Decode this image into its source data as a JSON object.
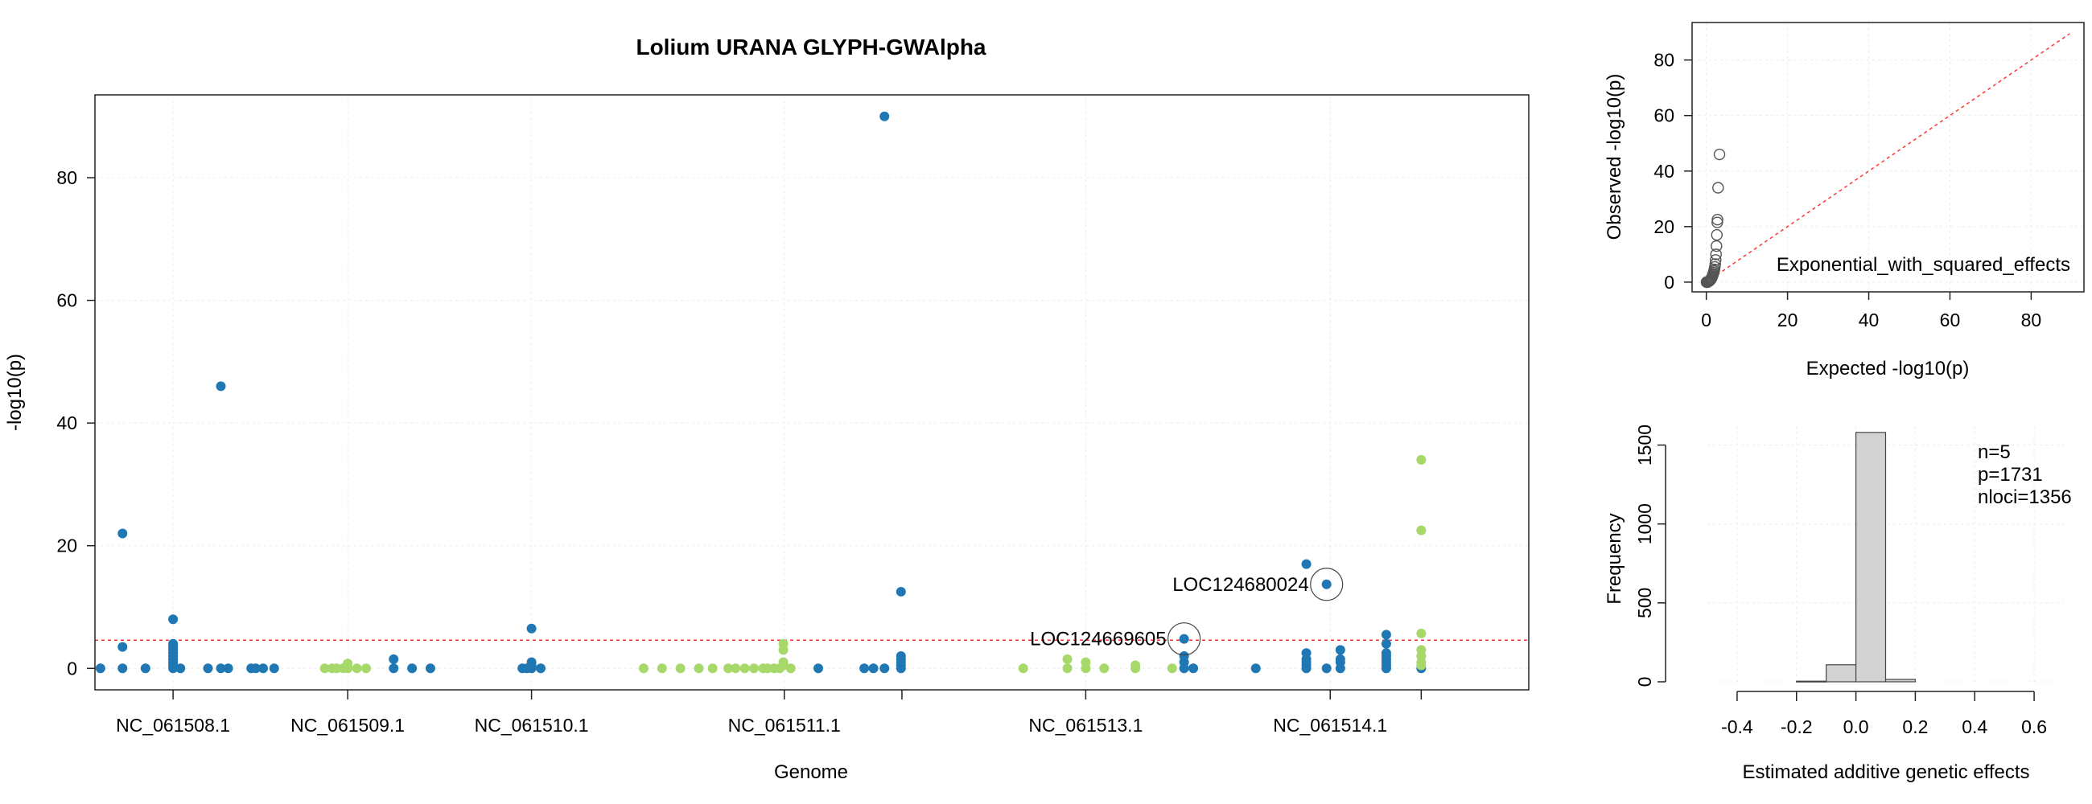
{
  "chart_data": [
    {
      "type": "scatter",
      "title": "Lolium URANA GLYPH-GWAlpha",
      "xlabel": "Genome",
      "ylabel": "-log10(p)",
      "ylim": [
        -3.5,
        93.5
      ],
      "xlim": [
        -5,
        1555
      ],
      "y_ticks": [
        0,
        20,
        40,
        60,
        80
      ],
      "grid": true,
      "threshold": 4.6,
      "colors": {
        "blue": "#1f78b4",
        "green": "#a6d96a",
        "threshold": "#ff3333"
      },
      "chromosome_labels": [
        {
          "label": "NC_061508.1",
          "x": 80
        },
        {
          "label": "NC_061509.1",
          "x": 270
        },
        {
          "label": "NC_061510.1",
          "x": 470
        },
        {
          "label": "NC_061511.1",
          "x": 745
        },
        {
          "label": "NC_061513.1",
          "x": 1073
        },
        {
          "label": "NC_061514.1",
          "x": 1339
        }
      ],
      "extra_ticks": [
        873,
        1438
      ],
      "series": [
        {
          "color": "blue",
          "points": [
            [
              1,
              0
            ],
            [
              25,
              0
            ],
            [
              25,
              22
            ],
            [
              25,
              3.5
            ],
            [
              50,
              0
            ],
            [
              80,
              0
            ],
            [
              80,
              0.5
            ],
            [
              80,
              1
            ],
            [
              80,
              1.5
            ],
            [
              80,
              2
            ],
            [
              80,
              2.5
            ],
            [
              80,
              3
            ],
            [
              80,
              3.5
            ],
            [
              80,
              4
            ],
            [
              80,
              8
            ],
            [
              88,
              0
            ],
            [
              118,
              0
            ],
            [
              132,
              0
            ],
            [
              132,
              46
            ],
            [
              140,
              0
            ],
            [
              165,
              0
            ],
            [
              170,
              0
            ],
            [
              178,
              0
            ],
            [
              190,
              0
            ]
          ]
        },
        {
          "color": "green",
          "points": [
            [
              245,
              0
            ],
            [
              253,
              0
            ],
            [
              258,
              0
            ],
            [
              265,
              0
            ],
            [
              270,
              0
            ],
            [
              270,
              0.8
            ],
            [
              280,
              0
            ],
            [
              290,
              0
            ]
          ]
        },
        {
          "color": "blue",
          "points": [
            [
              320,
              0
            ],
            [
              320,
              1.5
            ],
            [
              340,
              0
            ],
            [
              360,
              0
            ]
          ]
        },
        {
          "color": "blue",
          "points": [
            [
              460,
              0
            ],
            [
              465,
              0
            ],
            [
              470,
              0
            ],
            [
              470,
              0.5
            ],
            [
              470,
              1
            ],
            [
              470,
              6.5
            ],
            [
              480,
              0
            ]
          ]
        },
        {
          "color": "green",
          "points": [
            [
              592,
              0
            ],
            [
              612,
              0
            ],
            [
              632,
              0
            ],
            [
              652,
              0
            ],
            [
              667,
              0
            ],
            [
              684,
              0
            ],
            [
              692,
              0
            ],
            [
              702,
              0
            ],
            [
              712,
              0
            ],
            [
              722,
              0
            ],
            [
              727,
              0
            ],
            [
              734,
              0
            ],
            [
              740,
              0
            ],
            [
              744,
              0.5
            ],
            [
              744,
              1
            ],
            [
              744,
              3
            ],
            [
              744,
              4
            ],
            [
              752,
              0
            ]
          ]
        },
        {
          "color": "blue",
          "points": [
            [
              782,
              0
            ],
            [
              832,
              0
            ],
            [
              842,
              0
            ],
            [
              854,
              0
            ],
            [
              872,
              0
            ],
            [
              872,
              0.5
            ],
            [
              872,
              1
            ],
            [
              872,
              1.5
            ],
            [
              872,
              2
            ],
            [
              872,
              12.5
            ],
            [
              854,
              90
            ]
          ]
        },
        {
          "color": "green",
          "points": [
            [
              1005,
              0
            ],
            [
              1053,
              0
            ],
            [
              1053,
              1.5
            ],
            [
              1073,
              0
            ],
            [
              1073,
              1
            ],
            [
              1093,
              0
            ],
            [
              1127,
              0
            ],
            [
              1127,
              0.5
            ],
            [
              1167,
              0
            ]
          ]
        },
        {
          "color": "blue",
          "points": [
            [
              1180,
              0
            ],
            [
              1180,
              1
            ],
            [
              1180,
              2
            ],
            [
              1180,
              4.8
            ],
            [
              1190,
              0
            ]
          ]
        },
        {
          "color": "blue",
          "points": [
            [
              1258,
              0
            ],
            [
              1313,
              0
            ],
            [
              1313,
              0.5
            ],
            [
              1313,
              1
            ],
            [
              1313,
              1.5
            ],
            [
              1313,
              2.5
            ],
            [
              1313,
              17
            ],
            [
              1335,
              0
            ],
            [
              1335,
              13.7
            ],
            [
              1350,
              0
            ],
            [
              1350,
              1
            ],
            [
              1350,
              1.5
            ],
            [
              1350,
              3
            ],
            [
              1400,
              0
            ],
            [
              1400,
              0.5
            ],
            [
              1400,
              1
            ],
            [
              1400,
              1.5
            ],
            [
              1400,
              2
            ],
            [
              1400,
              2.5
            ],
            [
              1400,
              4
            ],
            [
              1400,
              5.5
            ],
            [
              1438,
              0
            ]
          ]
        },
        {
          "color": "green",
          "points": [
            [
              1438,
              0.5
            ],
            [
              1438,
              1
            ],
            [
              1438,
              2
            ],
            [
              1438,
              3
            ],
            [
              1438,
              5.7
            ],
            [
              1438,
              22.5
            ],
            [
              1438,
              34
            ]
          ]
        }
      ],
      "annotations": [
        {
          "label": "LOC124669605",
          "x": 1180,
          "y": 4.8
        },
        {
          "label": "LOC124680024",
          "x": 1335,
          "y": 13.7
        }
      ]
    },
    {
      "type": "scatter",
      "xlabel": "Expected -log10(p)",
      "ylabel": "Observed -log10(p)",
      "xlim": [
        -3.5,
        93
      ],
      "ylim": [
        -3.5,
        93.5
      ],
      "x_ticks": [
        0,
        20,
        40,
        60,
        80
      ],
      "y_ticks": [
        0,
        20,
        40,
        60,
        80
      ],
      "grid": true,
      "legend_text": "Exponential_with_squared_effects",
      "reference_line": "y = x",
      "points": [
        [
          0.05,
          0
        ],
        [
          0.1,
          0
        ],
        [
          0.2,
          0
        ],
        [
          0.3,
          0.05
        ],
        [
          0.4,
          0.1
        ],
        [
          0.5,
          0.2
        ],
        [
          0.6,
          0.3
        ],
        [
          0.7,
          0.4
        ],
        [
          0.8,
          0.5
        ],
        [
          0.9,
          0.6
        ],
        [
          1.0,
          0.8
        ],
        [
          1.1,
          1
        ],
        [
          1.2,
          1.2
        ],
        [
          1.3,
          1.5
        ],
        [
          1.4,
          1.8
        ],
        [
          1.5,
          2.2
        ],
        [
          1.6,
          2.6
        ],
        [
          1.7,
          3
        ],
        [
          1.8,
          3.5
        ],
        [
          1.9,
          4
        ],
        [
          2.0,
          4.6
        ],
        [
          2.1,
          5.5
        ],
        [
          2.2,
          6.5
        ],
        [
          2.3,
          8
        ],
        [
          2.4,
          10
        ],
        [
          2.5,
          13
        ],
        [
          2.6,
          17
        ],
        [
          2.7,
          21.5
        ],
        [
          2.75,
          22.5
        ],
        [
          2.9,
          34
        ],
        [
          3.24,
          46
        ]
      ]
    },
    {
      "type": "bar",
      "xlabel": "Estimated additive genetic effects",
      "ylabel": "Frequency",
      "xlim": [
        -0.5,
        0.7
      ],
      "ylim": [
        0,
        1620
      ],
      "x_ticks": [
        -0.4,
        -0.2,
        0.0,
        0.2,
        0.4,
        0.6
      ],
      "x_tick_labels": [
        "-0.4",
        "-0.2",
        "0.0",
        "0.2",
        "0.4",
        "0.6"
      ],
      "y_ticks": [
        0,
        500,
        1000,
        1500
      ],
      "grid": true,
      "bins": [
        {
          "from": -0.2,
          "to": -0.1,
          "count": 4
        },
        {
          "from": -0.1,
          "to": 0.0,
          "count": 108
        },
        {
          "from": 0.0,
          "to": 0.1,
          "count": 1580
        },
        {
          "from": 0.1,
          "to": 0.2,
          "count": 15
        }
      ],
      "stats": [
        "n=5",
        "p=1731",
        "nloci=1356"
      ]
    }
  ]
}
